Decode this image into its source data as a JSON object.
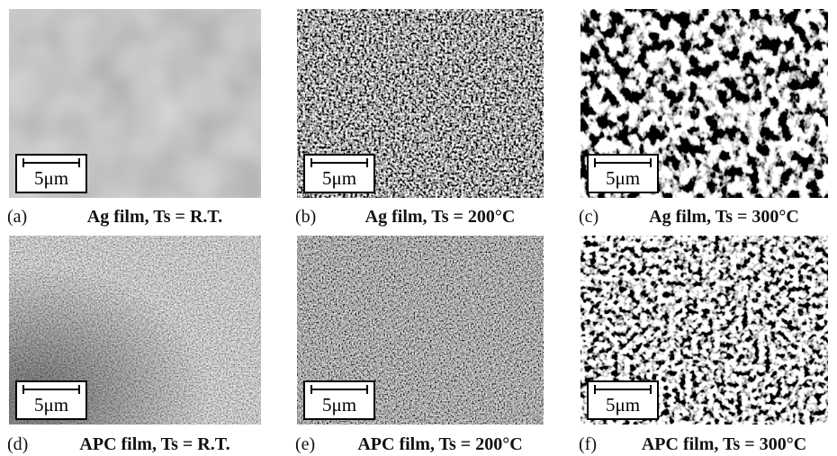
{
  "panels": [
    {
      "label": "(a)",
      "caption": "Ag film, Ts = R.T.",
      "scale_bar": "5μm"
    },
    {
      "label": "(b)",
      "caption": "Ag film, Ts = 200°C",
      "scale_bar": "5μm"
    },
    {
      "label": "(c)",
      "caption": "Ag film, Ts = 300°C",
      "scale_bar": "5μm"
    },
    {
      "label": "(d)",
      "caption": "APC film, Ts = R.T.",
      "scale_bar": "5μm"
    },
    {
      "label": "(e)",
      "caption": "APC film, Ts = 200°C",
      "scale_bar": "5μm"
    },
    {
      "label": "(f)",
      "caption": "APC film, Ts = 300°C",
      "scale_bar": "5μm"
    }
  ]
}
